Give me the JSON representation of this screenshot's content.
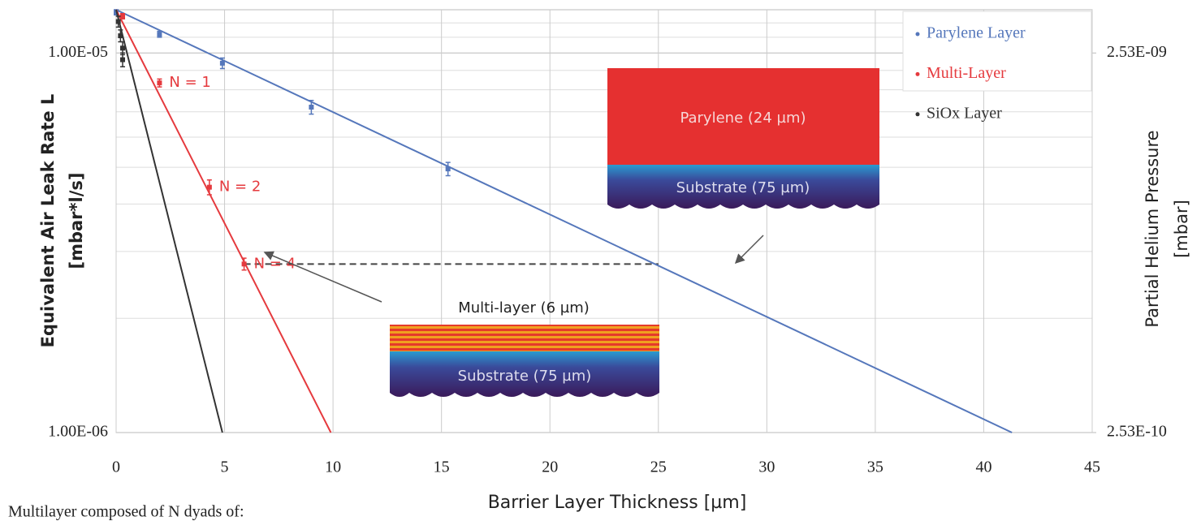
{
  "chart_data": {
    "type": "scatter",
    "xlabel": "Barrier Layer Thickness [µm]",
    "ylabel": [
      "Equivalent Air Leak Rate L",
      "[mbar*l/s]"
    ],
    "y2label": [
      "Partial Helium Pressure",
      "[mbar]"
    ],
    "log_y": true,
    "grid": true,
    "xlim": [
      0,
      45
    ],
    "xticks": [
      0,
      5,
      10,
      15,
      20,
      25,
      30,
      35,
      40,
      45
    ],
    "ylim": [
      1e-06,
      1.3e-05
    ],
    "yticks": [
      {
        "value": 1e-06,
        "label": "1.00E-06"
      },
      {
        "value": 1e-05,
        "label": "1.00E-05"
      }
    ],
    "yminorticks": [
      2e-06,
      3e-06,
      4e-06,
      5e-06,
      6e-06,
      7e-06,
      8e-06,
      9e-06,
      1.1e-05,
      1.2e-05
    ],
    "y2lim": [
      2.53e-10,
      3.289e-09
    ],
    "y2ticks": [
      {
        "value": 2.53e-10,
        "label": "2.53E-10"
      },
      {
        "value": 2.53e-09,
        "label": "2.53E-09"
      }
    ],
    "legend": "top-right",
    "series": [
      {
        "name": "Parylene Layer",
        "color": "#5577bb",
        "x": [
          0,
          2,
          4.9,
          9,
          15.3
        ],
        "values": [
          1.28e-05,
          1.12e-05,
          9.4e-06,
          7.2e-06,
          4.95e-06
        ],
        "errors": [
          2e-07,
          2e-07,
          3e-07,
          3e-07,
          2e-07
        ],
        "fit_x": [
          0,
          41.3
        ],
        "fit_values": [
          1.3e-05,
          1e-06
        ]
      },
      {
        "name": "Multi-Layer",
        "color": "#e53a3e",
        "x": [
          0.3,
          2,
          4.3,
          5.9
        ],
        "values": [
          1.25e-05,
          8.34e-06,
          4.43e-06,
          2.78e-06
        ],
        "errors": [
          2e-07,
          2e-07,
          2e-07,
          1e-07
        ],
        "point_labels": [
          null,
          "N = 1",
          "N = 2",
          "N = 4"
        ],
        "fit_x": [
          0,
          9.9
        ],
        "fit_values": [
          1.3e-05,
          1e-06
        ]
      },
      {
        "name": "SiOx Layer",
        "color": "#333333",
        "x": [
          0.1,
          0.2,
          0.3,
          0.3
        ],
        "values": [
          1.21e-05,
          1.11e-05,
          1.03e-05,
          9.6e-06
        ],
        "errors": [
          4e-07,
          4e-07,
          4e-07,
          4e-07
        ],
        "fit_x": [
          0,
          4.9
        ],
        "fit_values": [
          1.3e-05,
          1e-06
        ]
      }
    ],
    "reference_line": {
      "x": [
        5.9,
        25
      ],
      "value": 2.78e-06
    },
    "insets": {
      "parylene": "Parylene (24 µm)",
      "substrate_top": "Substrate (75 µm)",
      "multilayer": "Multi-layer (6 µm)",
      "substrate_bottom": "Substrate (75 µm)"
    },
    "caption": "Multilayer composed of N dyads of:"
  }
}
